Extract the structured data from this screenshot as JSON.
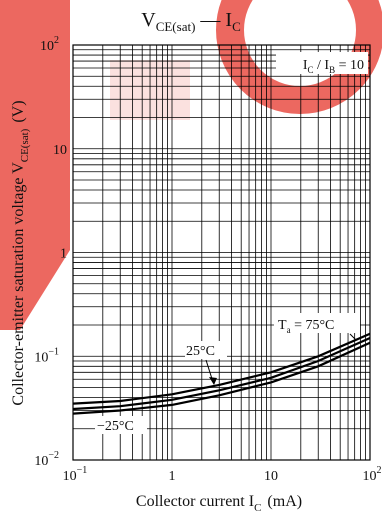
{
  "chart_data": {
    "type": "line",
    "title": "V",
    "title_sub": "CE(sat)",
    "title_dash": " — ",
    "title2": "I",
    "title2_sub": "C",
    "xscale": "log",
    "yscale": "log",
    "xlim": [
      0.1,
      100
    ],
    "ylim": [
      0.01,
      100
    ],
    "grid": true,
    "xlabel": "Collector current  I",
    "xlabel_sub": "C",
    "xlabel_unit": "(mA)",
    "ylabel": "Collector-emitter saturation voltage  V",
    "ylabel_sub": "CE(sat)",
    "ylabel_unit": "(V)",
    "xticks": [
      {
        "value": 0.1,
        "base": "10",
        "exp": "−1",
        "text": ""
      },
      {
        "value": 1,
        "base": "",
        "exp": "",
        "text": "1"
      },
      {
        "value": 10,
        "base": "",
        "exp": "",
        "text": "10"
      },
      {
        "value": 100,
        "base": "10",
        "exp": "2",
        "text": ""
      }
    ],
    "yticks": [
      {
        "value": 0.01,
        "base": "10",
        "exp": "−2",
        "text": ""
      },
      {
        "value": 0.1,
        "base": "10",
        "exp": "−1",
        "text": ""
      },
      {
        "value": 1,
        "base": "",
        "exp": "",
        "text": "1"
      },
      {
        "value": 10,
        "base": "",
        "exp": "",
        "text": "10"
      },
      {
        "value": 100,
        "base": "10",
        "exp": "2",
        "text": ""
      }
    ],
    "condition": {
      "main": "I",
      "sub": "C",
      "mid": " / I",
      "sub2": "B",
      "tail": " = 10"
    },
    "series": [
      {
        "name": "Ta = 75°C",
        "label_main": "T",
        "label_sub": "a",
        "label_tail": " = 75°C",
        "x": [
          0.1,
          0.3,
          1,
          3,
          10,
          30,
          100
        ],
        "y": [
          0.035,
          0.037,
          0.043,
          0.053,
          0.07,
          0.1,
          0.165
        ]
      },
      {
        "name": "25°C",
        "label_main": "25°C",
        "label_sub": "",
        "label_tail": "",
        "x": [
          0.1,
          0.3,
          1,
          3,
          10,
          30,
          100
        ],
        "y": [
          0.031,
          0.033,
          0.038,
          0.047,
          0.062,
          0.09,
          0.15
        ]
      },
      {
        "name": "−25°C",
        "label_main": "−25°C",
        "label_sub": "",
        "label_tail": "",
        "x": [
          0.1,
          0.3,
          1,
          3,
          10,
          30,
          100
        ],
        "y": [
          0.028,
          0.03,
          0.034,
          0.042,
          0.056,
          0.08,
          0.135
        ]
      }
    ],
    "colors": {
      "line": "#000000",
      "text": "#111111",
      "watermark": "#e63a3a"
    }
  }
}
